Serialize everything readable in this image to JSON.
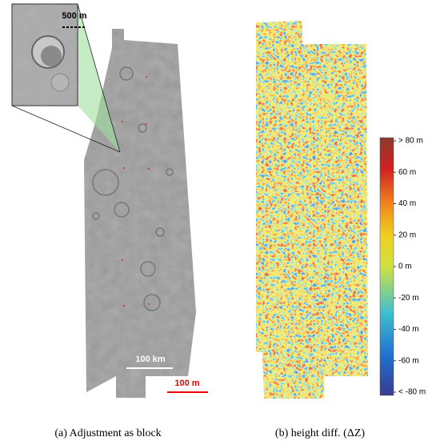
{
  "panels": [
    {
      "caption": "(a) Adjustment as block",
      "inset_scale": "500 m",
      "scale_large": "100 km",
      "scale_small": "100 m"
    },
    {
      "caption": "(b) height diff. (ΔZ)",
      "colorbar": {
        "lim": [
          -80,
          80
        ],
        "ticks": [
          {
            "value": 80,
            "label": "> 80 m"
          },
          {
            "value": 60,
            "label": "60 m"
          },
          {
            "value": 40,
            "label": "40 m"
          },
          {
            "value": 20,
            "label": "20 m"
          },
          {
            "value": 0,
            "label": "0 m"
          },
          {
            "value": -20,
            "label": "-20 m"
          },
          {
            "value": -40,
            "label": "-40 m"
          },
          {
            "value": -60,
            "label": "-60 m"
          },
          {
            "value": -80,
            "label": "< -80 m"
          }
        ]
      }
    }
  ]
}
